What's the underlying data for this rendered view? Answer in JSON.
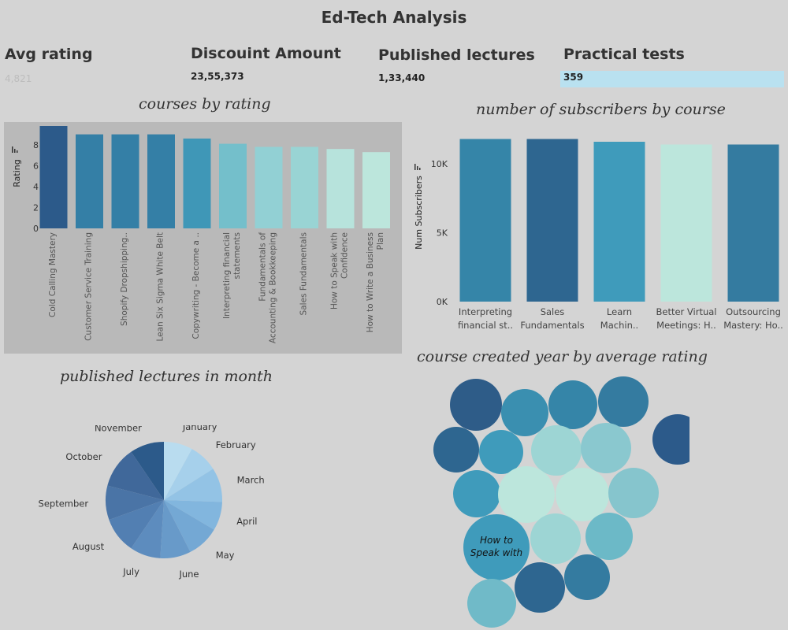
{
  "title": "Ed-Tech Analysis",
  "kpis": [
    {
      "label": "Avg rating",
      "value": "4,821"
    },
    {
      "label": "Discouint Amount",
      "value": "23,55,373"
    },
    {
      "label": "Published lectures",
      "value": "1,33,440"
    },
    {
      "label": "Practical tests",
      "value": "359"
    }
  ],
  "colors": {
    "background": "#d4d4d4",
    "bar_panel": "#b9b9b9",
    "kpi_highlight": "#b9e1f0",
    "palette_dark": "#2c5a8a",
    "palette_mid": "#3f97b7",
    "palette_light": "#bce6dc"
  },
  "icons": {
    "axis_marker": "bar-chart-mini-icon"
  },
  "chart_data": [
    {
      "type": "bar",
      "title": "courses by rating",
      "ylabel": "Rating",
      "ylim": [
        0,
        9.8
      ],
      "yticks": [
        0,
        2,
        4,
        6,
        8
      ],
      "grid": false,
      "categories": [
        "Cold Calling Mastery",
        "Customer Service Training",
        "Shopify Dropshipping..",
        "Lean Six Sigma White Belt",
        "Copywriting - Become a ..",
        "Interpreting financial statements",
        "Fundamentals of Accounting & Bookkeeping",
        "Sales Fundamentals",
        "How to Speak with Confidence",
        "How to Write a Business Plan"
      ],
      "category_lines": [
        [
          "Cold Calling Mastery"
        ],
        [
          "Customer Service Training"
        ],
        [
          "Shopify Dropshipping.."
        ],
        [
          "Lean Six Sigma White Belt"
        ],
        [
          "Copywriting - Become a .."
        ],
        [
          "Interpreting financial",
          "statements"
        ],
        [
          "Fundamentals of",
          "Accounting & Bookkeeping"
        ],
        [
          "Sales Fundamentals"
        ],
        [
          "How to Speak with",
          "Confidence"
        ],
        [
          "How to Write a Business",
          "Plan"
        ]
      ],
      "values": [
        9.8,
        9.0,
        9.0,
        9.0,
        8.6,
        8.1,
        7.8,
        7.8,
        7.6,
        7.3
      ],
      "colors": [
        "#2c5a8a",
        "#347fa6",
        "#347fa6",
        "#347fa6",
        "#3f97b7",
        "#74bfcb",
        "#92d0d4",
        "#99d4d4",
        "#b7e3dc",
        "#bce6dc"
      ]
    },
    {
      "type": "bar",
      "title": "number of subscribers by course",
      "ylabel": "Num Subscribers",
      "ylim": [
        0,
        12000
      ],
      "yticks": [
        0,
        5000,
        10000
      ],
      "ytick_labels": [
        "0K",
        "5K",
        "10K"
      ],
      "grid": false,
      "categories": [
        "Interpreting financial st..",
        "Sales Fundamentals",
        "Learn Machin..",
        "Better Virtual Meetings: H..",
        "Outsourcing Mastery: Ho.."
      ],
      "category_lines": [
        [
          "Interpreting",
          "financial st.."
        ],
        [
          "Sales",
          "Fundamentals"
        ],
        [
          "Learn",
          "Machin.."
        ],
        [
          "Better Virtual",
          "Meetings: H.."
        ],
        [
          "Outsourcing",
          "Mastery: Ho.."
        ]
      ],
      "values": [
        11800,
        11800,
        11600,
        11400,
        11400
      ],
      "colors": [
        "#3585a8",
        "#2e6690",
        "#3f9bbb",
        "#bce6dc",
        "#347ba0"
      ]
    },
    {
      "type": "pie",
      "title": "published lectures in month",
      "legend": "labels-outside",
      "categories": [
        "January",
        "February",
        "March",
        "April",
        "May",
        "June",
        "July",
        "August",
        "September",
        "October",
        "November"
      ],
      "values": [
        8,
        8,
        9.5,
        8,
        9,
        8.5,
        8.5,
        10,
        9.5,
        11.5,
        9.5
      ],
      "colors": [
        "#b9dcef",
        "#a6d0eb",
        "#93c3e5",
        "#82b6de",
        "#74a8d4",
        "#689ac9",
        "#5d8cbe",
        "#527fb2",
        "#4a74a6",
        "#40689a",
        "#2c5a8a"
      ]
    },
    {
      "type": "bubble",
      "title": "course created year by average rating",
      "visible_label": "How to Speak with",
      "values": [
        4.68,
        4.65,
        4.62,
        4.64,
        4.7,
        4.67,
        4.58,
        4.52,
        4.55,
        4.6,
        4.5,
        4.48,
        4.53,
        4.57,
        4.59,
        4.54,
        4.66,
        4.63,
        4.55
      ],
      "colors": [
        "#2e5c88",
        "#3a8fb0",
        "#3585a8",
        "#347ba0",
        "#2c5a8a",
        "#2e6690",
        "#3f9bbb",
        "#9dd5d4",
        "#8ac8cf",
        "#3f9bbb",
        "#bce6dc",
        "#bce6dc",
        "#86c5cd",
        "#3f9bbb",
        "#9dd5d4",
        "#6cb9c7",
        "#2e6690",
        "#347ba0",
        "#70bac8"
      ]
    }
  ]
}
